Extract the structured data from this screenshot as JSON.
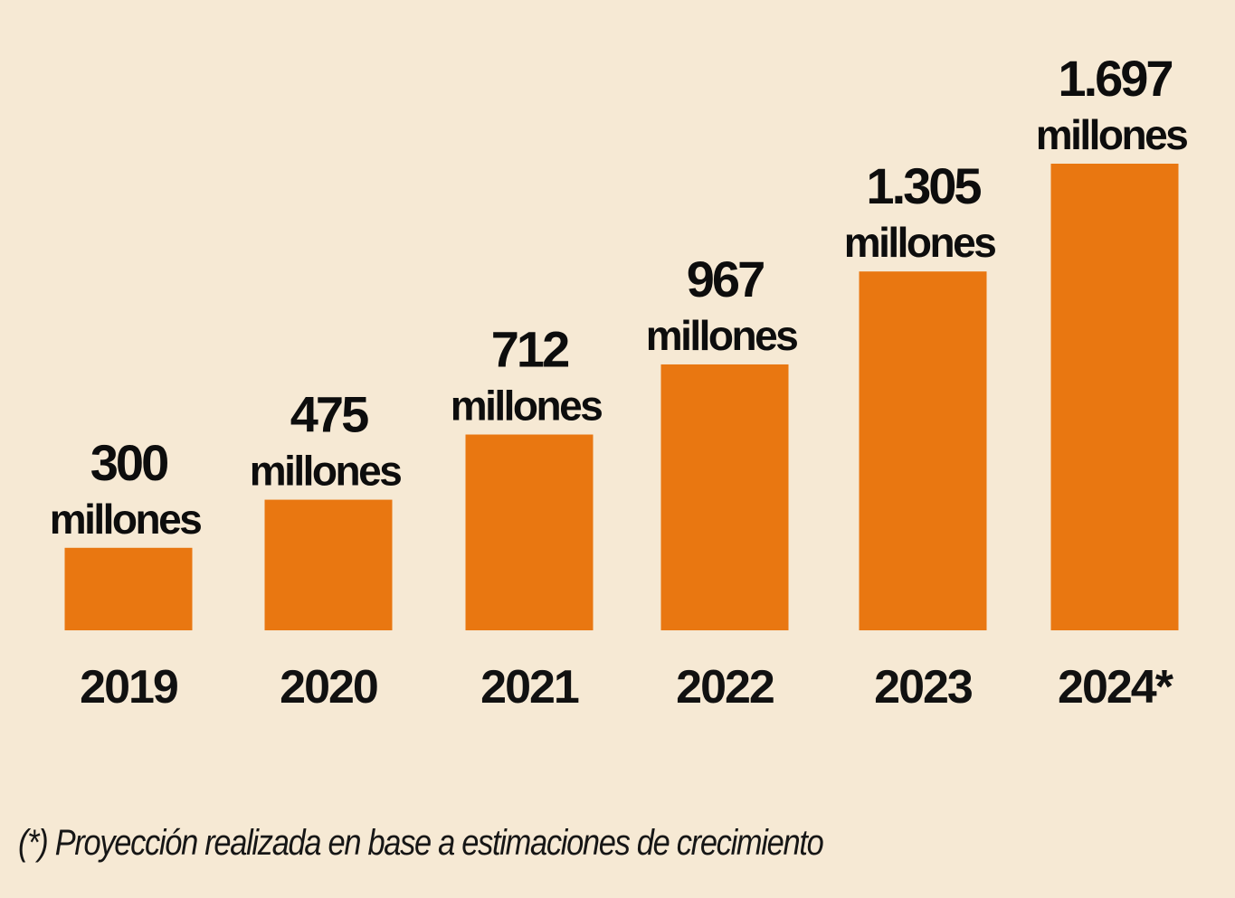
{
  "chart_data": {
    "type": "bar",
    "title": "",
    "xlabel": "",
    "ylabel": "",
    "categories": [
      "2019",
      "2020",
      "2021",
      "2022",
      "2023",
      "2024*"
    ],
    "values": [
      300,
      475,
      712,
      967,
      1305,
      1697
    ],
    "value_labels": [
      "300",
      "475",
      "712",
      "967",
      "1.305",
      "1.697"
    ],
    "unit_label": "millones",
    "ylim": [
      0,
      1697
    ],
    "grid": false,
    "legend": "none",
    "bar_color": "#e97711",
    "background_color": "#f6e9d4",
    "footnote": "(*) Proyección realizada en base a estimaciones de crecimiento"
  }
}
